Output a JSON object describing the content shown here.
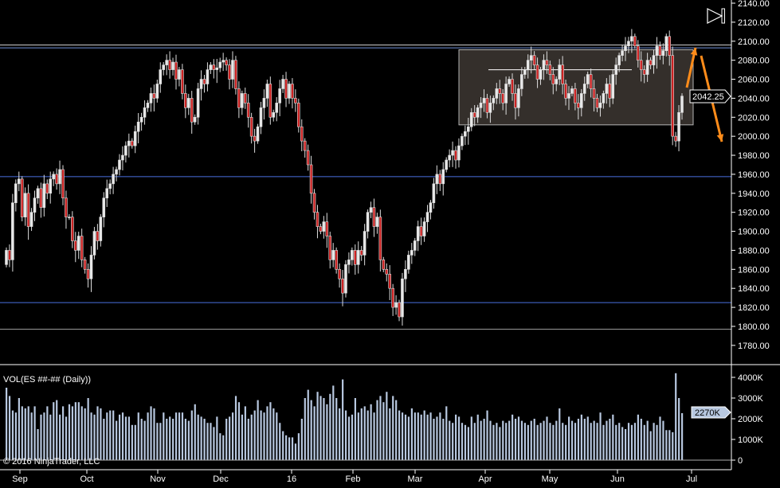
{
  "chart_data": {
    "type": "candlestick",
    "instrument_label": "VOL(ES ##-## (Daily))",
    "copyright": "© 2016 NinjaTrader, LLC",
    "price_axis": {
      "ylim": [
        1770,
        2145
      ],
      "ticks": [
        "2140.00",
        "2120.00",
        "2100.00",
        "2080.00",
        "2060.00",
        "2040.00",
        "2020.00",
        "2000.00",
        "1980.00",
        "1960.00",
        "1940.00",
        "1920.00",
        "1900.00",
        "1880.00",
        "1860.00",
        "1840.00",
        "1820.00",
        "1800.00",
        "1780.00"
      ]
    },
    "volume_axis": {
      "ylim": [
        0,
        4300
      ],
      "unit": "K",
      "ticks": [
        "4000K",
        "3000K",
        "2000K",
        "1000K",
        "0"
      ]
    },
    "x_ticks": [
      "Sep",
      "Oct",
      "Nov",
      "Dec",
      "16",
      "Feb",
      "Mar",
      "Apr",
      "May",
      "Jun",
      "Jul"
    ],
    "last_price": "2042.25",
    "last_volume": "2270K",
    "closes": [
      1880,
      1870,
      1930,
      1950,
      1955,
      1915,
      1940,
      1905,
      1920,
      1935,
      1945,
      1925,
      1950,
      1940,
      1955,
      1960,
      1950,
      1965,
      1935,
      1915,
      1915,
      1890,
      1880,
      1895,
      1870,
      1860,
      1850,
      1875,
      1900,
      1890,
      1915,
      1935,
      1945,
      1950,
      1960,
      1965,
      1975,
      1980,
      1990,
      1995,
      1990,
      2005,
      2015,
      2020,
      2030,
      2035,
      2045,
      2040,
      2055,
      2070,
      2075,
      2080,
      2070,
      2078,
      2060,
      2070,
      2045,
      2030,
      2040,
      2015,
      2020,
      2050,
      2060,
      2055,
      2070,
      2075,
      2070,
      2072,
      2078,
      2080,
      2075,
      2060,
      2080,
      2050,
      2030,
      2045,
      2035,
      2020,
      2000,
      1995,
      2010,
      2030,
      2040,
      2055,
      2020,
      2025,
      2035,
      2050,
      2060,
      2040,
      2055,
      2040,
      2035,
      2010,
      1995,
      1985,
      1970,
      1940,
      1920,
      1905,
      1900,
      1910,
      1895,
      1870,
      1880,
      1860,
      1850,
      1835,
      1865,
      1870,
      1880,
      1865,
      1880,
      1875,
      1900,
      1920,
      1925,
      1905,
      1915,
      1870,
      1860,
      1855,
      1840,
      1820,
      1825,
      1810,
      1850,
      1860,
      1875,
      1880,
      1890,
      1905,
      1895,
      1910,
      1920,
      1930,
      1950,
      1960,
      1950,
      1965,
      1975,
      1980,
      1985,
      1975,
      1990,
      2000,
      2005,
      2010,
      2025,
      2020,
      2030,
      2035,
      2040,
      2025,
      2035,
      2040,
      2050,
      2045,
      2035,
      2055,
      2060,
      2045,
      2030,
      2050,
      2065,
      2070,
      2080,
      2085,
      2075,
      2060,
      2070,
      2080,
      2075,
      2065,
      2055,
      2060,
      2075,
      2055,
      2040,
      2045,
      2050,
      2035,
      2030,
      2045,
      2055,
      2065,
      2050,
      2040,
      2030,
      2035,
      2045,
      2055,
      2040,
      2065,
      2075,
      2085,
      2090,
      2095,
      2100,
      2105,
      2095,
      2080,
      2070,
      2065,
      2080,
      2075,
      2085,
      2095,
      2085,
      2090,
      2105,
      2085,
      2000,
      1995,
      2025,
      2042.25
    ],
    "volumes": [
      3500,
      3100,
      2400,
      2300,
      3000,
      2600,
      2500,
      2600,
      2300,
      2600,
      1500,
      2200,
      2300,
      2600,
      2200,
      2800,
      2900,
      2200,
      2600,
      2100,
      2700,
      2600,
      2800,
      2800,
      2600,
      2500,
      3000,
      2300,
      2200,
      2600,
      2500,
      2000,
      2300,
      2400,
      2400,
      1900,
      2200,
      2300,
      2100,
      2100,
      1700,
      1700,
      2300,
      2000,
      1900,
      2300,
      2600,
      2500,
      1800,
      1800,
      2300,
      2000,
      2100,
      2000,
      2300,
      2300,
      2300,
      2000,
      1900,
      2400,
      2700,
      2200,
      2100,
      2000,
      1800,
      1800,
      1600,
      2100,
      1300,
      1200,
      2000,
      2100,
      2300,
      3100,
      2800,
      2200,
      2600,
      2000,
      2200,
      2400,
      2900,
      2400,
      2300,
      2600,
      2800,
      2500,
      2300,
      1800,
      1400,
      1200,
      1100,
      1100,
      800,
      1300,
      2000,
      3000,
      3400,
      2900,
      2600,
      3300,
      3100,
      3000,
      2700,
      3200,
      3600,
      3000,
      2500,
      3900,
      2400,
      2100,
      2200,
      3000,
      2300,
      2500,
      2600,
      2400,
      2700,
      2300,
      2900,
      3100,
      2800,
      3300,
      2500,
      3100,
      2900,
      2400,
      2300,
      2200,
      2100,
      2500,
      2300,
      2300,
      2200,
      2400,
      2200,
      2300,
      2000,
      2100,
      2300,
      2000,
      2600,
      1900,
      1800,
      2200,
      2100,
      1800,
      1700,
      1600,
      2100,
      1800,
      2200,
      1900,
      2000,
      2400,
      1900,
      1700,
      1800,
      1600,
      1900,
      1800,
      1900,
      2200,
      2000,
      2100,
      1900,
      1800,
      1700,
      1900,
      2000,
      1700,
      1800,
      1900,
      2100,
      1800,
      1700,
      1900,
      2500,
      1800,
      1700,
      2100,
      1900,
      1800,
      2000,
      2200,
      2000,
      2100,
      1800,
      1900,
      1800,
      2300,
      1700,
      1900,
      2000,
      2200,
      1700,
      1800,
      1600,
      1500,
      1800,
      1700,
      1800,
      2200,
      2000,
      1700,
      1900,
      1400,
      1800,
      1700,
      2100,
      1900,
      1450,
      1450,
      1350,
      4200,
      3000,
      2270
    ]
  },
  "annotations": {
    "box_range": [
      2012,
      2091
    ],
    "inner_line": 2070,
    "horizontal_lines": [
      {
        "price": 2096,
        "color": "#cccccc"
      },
      {
        "price": 2093,
        "color": "#6f8fd8"
      },
      {
        "price": 1957.5,
        "color": "#4a6fe0"
      },
      {
        "price": 1825,
        "color": "#4a6fe0"
      },
      {
        "price": 1797,
        "color": "#999999"
      }
    ],
    "arrow_color": "#ff8c1a"
  },
  "colors": {
    "up": "#e8e8e8",
    "down": "#cc2222",
    "volume": "#b8c8e0",
    "background": "#000000"
  }
}
